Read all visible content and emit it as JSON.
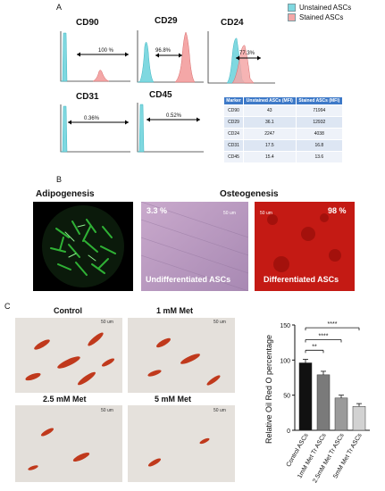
{
  "panel_a": {
    "letter": "A",
    "legend": {
      "items": [
        {
          "label": "Unstained ASCs",
          "color": "#7fd8e0"
        },
        {
          "label": "Stained ASCs",
          "color": "#f4a7a7"
        }
      ]
    },
    "histograms": [
      {
        "title": "CD90",
        "percent": "100 %"
      },
      {
        "title": "CD29",
        "percent": "96.8%"
      },
      {
        "title": "CD24",
        "percent": "77.3%"
      },
      {
        "title": "CD31",
        "percent": "0.36%"
      },
      {
        "title": "CD45",
        "percent": "0.52%"
      }
    ],
    "table": {
      "headers": [
        "Marker",
        "Unstained ASCs (MFI)",
        "Stained ASCs (MFI)"
      ],
      "rows": [
        [
          "CD90",
          "43",
          "71994"
        ],
        [
          "CD29",
          "36.1",
          "12932"
        ],
        [
          "CD24",
          "2247",
          "4038"
        ],
        [
          "CD31",
          "17.5",
          "16.8"
        ],
        [
          "CD45",
          "15.4",
          "13.6"
        ]
      ]
    }
  },
  "panel_b": {
    "letter": "B",
    "adipo_title": "Adipogenesis",
    "osteo_title": "Osteogenesis",
    "undiff": {
      "percent": "3.3 %",
      "label": "Undifferentiated ASCs",
      "scale": "50 um"
    },
    "diff": {
      "percent": "98 %",
      "label": "Differentiated ASCs",
      "scale": "50 um"
    }
  },
  "panel_c": {
    "letter": "C",
    "tiles": [
      {
        "label": "Control",
        "scale": "50 um"
      },
      {
        "label": "1 mM Met",
        "scale": "50 um"
      },
      {
        "label": "2.5 mM Met",
        "scale": "50 um"
      },
      {
        "label": "5 mM Met",
        "scale": "50 um"
      }
    ]
  },
  "chart_data": {
    "type": "bar",
    "categories": [
      "Control ASCs",
      "1mM Met Tr ASCs",
      "2.5mM Met Tr ASCs",
      "5mM Met Tr ASCs"
    ],
    "values": [
      96,
      79,
      46,
      34
    ],
    "errors": [
      5,
      5,
      4,
      4
    ],
    "colors": [
      "#111111",
      "#7a7a7a",
      "#9a9a9a",
      "#d2d2d2"
    ],
    "ylabel": "Relative Oil Red O percentage",
    "ylim": [
      0,
      150
    ],
    "yticks": [
      0,
      50,
      100,
      150
    ],
    "significance": [
      {
        "from": 0,
        "to": 1,
        "label": "**"
      },
      {
        "from": 0,
        "to": 2,
        "label": "****"
      },
      {
        "from": 0,
        "to": 3,
        "label": "****"
      }
    ]
  }
}
